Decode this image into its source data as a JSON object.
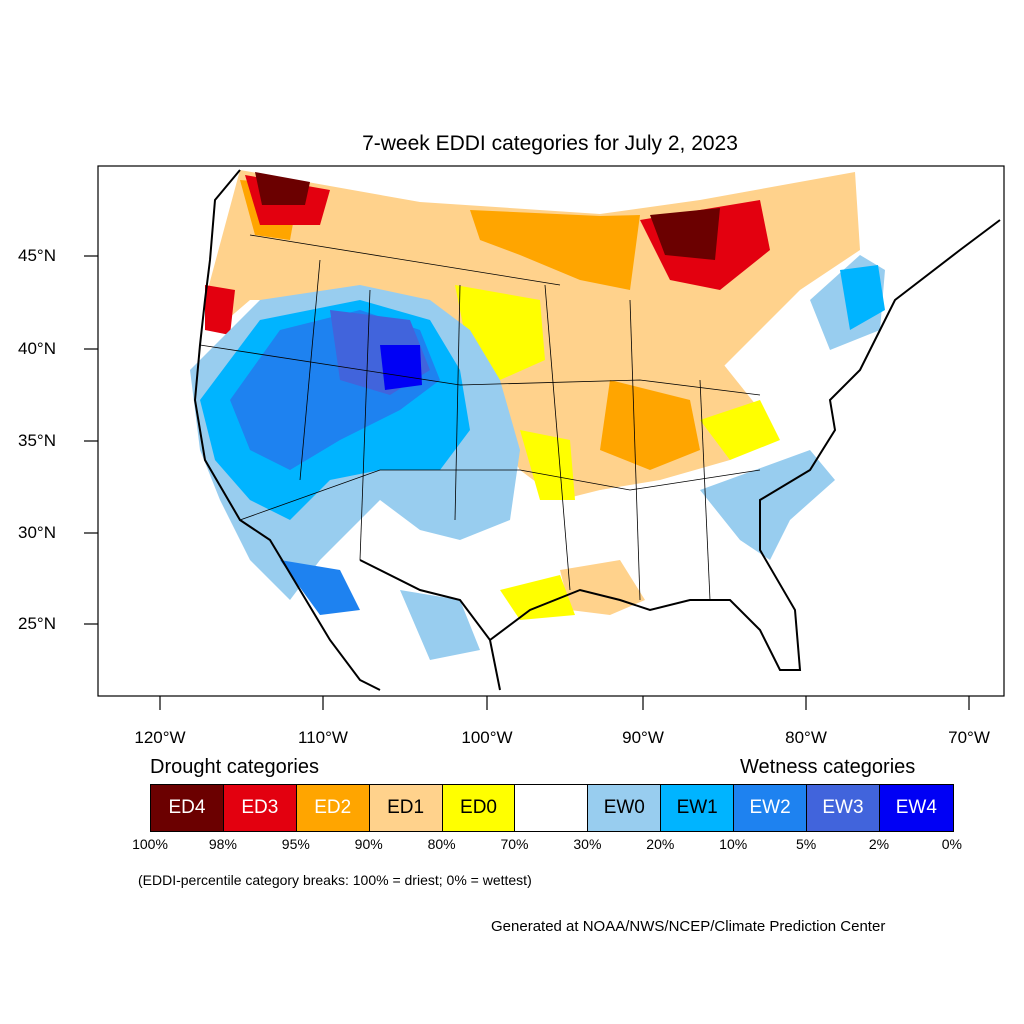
{
  "title": "7-week EDDI categories for July 2, 2023",
  "lat_labels": [
    "45°N",
    "40°N",
    "35°N",
    "30°N",
    "25°N"
  ],
  "lon_labels": [
    "120°W",
    "110°W",
    "100°W",
    "90°W",
    "80°W",
    "70°W"
  ],
  "legend": {
    "drought_heading": "Drought categories",
    "wetness_heading": "Wetness categories",
    "categories": [
      {
        "label": "ED4",
        "color": "#6b0000",
        "text_color": "#ffffff"
      },
      {
        "label": "ED3",
        "color": "#e3000f",
        "text_color": "#ffffff"
      },
      {
        "label": "ED2",
        "color": "#ffa500",
        "text_color": "#ffffff"
      },
      {
        "label": "ED1",
        "color": "#ffd28c",
        "text_color": "#000000"
      },
      {
        "label": "ED0",
        "color": "#ffff00",
        "text_color": "#000000"
      },
      {
        "label": "",
        "color": "#ffffff",
        "text_color": "#000000"
      },
      {
        "label": "EW0",
        "color": "#98cdef",
        "text_color": "#000000"
      },
      {
        "label": "EW1",
        "color": "#00b4ff",
        "text_color": "#000000"
      },
      {
        "label": "EW2",
        "color": "#1e82f0",
        "text_color": "#ffffff"
      },
      {
        "label": "EW3",
        "color": "#4164dc",
        "text_color": "#ffffff"
      },
      {
        "label": "EW4",
        "color": "#0000f5",
        "text_color": "#ffffff"
      }
    ],
    "percentiles": [
      "100%",
      "98%",
      "95%",
      "90%",
      "80%",
      "70%",
      "30%",
      "20%",
      "10%",
      "5%",
      "2%",
      "0%"
    ]
  },
  "note": "(EDDI-percentile category breaks: 100% = driest; 0% = wettest)",
  "credit": "Generated at NOAA/NWS/NCEP/Climate Prediction Center"
}
